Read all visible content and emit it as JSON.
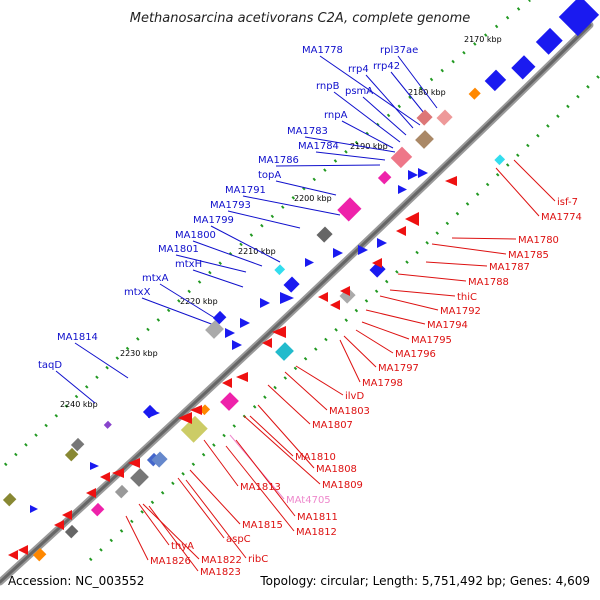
{
  "title": "Methanosarcina acetivorans C2A, complete genome",
  "accession": "Accession: NC_003552",
  "topology": "Topology: circular; Length: 5,751,492 bp; Genes: 4,609",
  "colors": {
    "forward_label": "#1010cc",
    "reverse_label": "#dd1111",
    "rna_label": "#ee88cc",
    "backbone": "#777777",
    "tick_dash": "#229922"
  },
  "scale": [
    "2170 kbp",
    "2180 kbp",
    "2190 kbp",
    "2200 kbp",
    "2210 kbp",
    "2220 kbp",
    "2230 kbp",
    "2240 kbp"
  ],
  "forward_genes": [
    "MA1778",
    "rpl37ae",
    "rrp4",
    "rrp42",
    "rnpB",
    "psmA",
    "rnpA",
    "MA1783",
    "MA1784",
    "MA1786",
    "topA",
    "MA1791",
    "MA1793",
    "MA1799",
    "MA1800",
    "MA1801",
    "mtxH",
    "mtxA",
    "mtxX",
    "MA1814",
    "taqD"
  ],
  "reverse_genes": [
    "isf-7",
    "MA1774",
    "MA1780",
    "MA1785",
    "MA1787",
    "MA1788",
    "thiC",
    "MA1792",
    "MA1794",
    "MA1795",
    "MA1796",
    "MA1797",
    "MA1798",
    "ilvD",
    "MA1803",
    "MA1807",
    "MA1810",
    "MA1808",
    "MA1809",
    "MA1813",
    "MAt4705",
    "MA1811",
    "MA1812",
    "MA1815",
    "aspC",
    "ribC",
    "thyA",
    "MA1822",
    "MA1826",
    "MA1823"
  ]
}
